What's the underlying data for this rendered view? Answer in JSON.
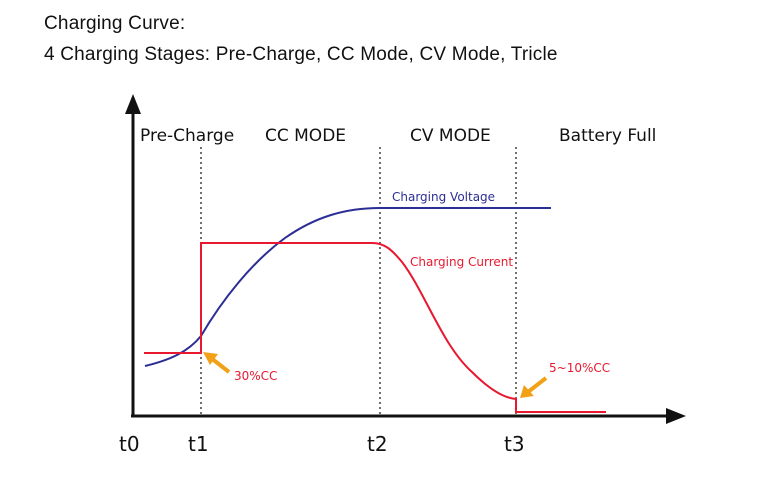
{
  "header": {
    "title": "Charging Curve:",
    "subtitle": "4 Charging Stages: Pre-Charge, CC Mode, CV Mode, Tricle"
  },
  "stages": [
    "Pre-Charge",
    "CC MODE",
    "CV MODE",
    "Battery Full"
  ],
  "time_ticks": [
    "t0",
    "t1",
    "t2",
    "t3"
  ],
  "curves": {
    "voltage": {
      "label": "Charging Voltage",
      "color": "#2b2e94"
    },
    "current": {
      "label": "Charging Current",
      "color": "#e8182f"
    }
  },
  "annotations": {
    "precharge_current": "30%CC",
    "trickle_current": "5~10%CC",
    "arrow_color": "#f2a015"
  }
}
